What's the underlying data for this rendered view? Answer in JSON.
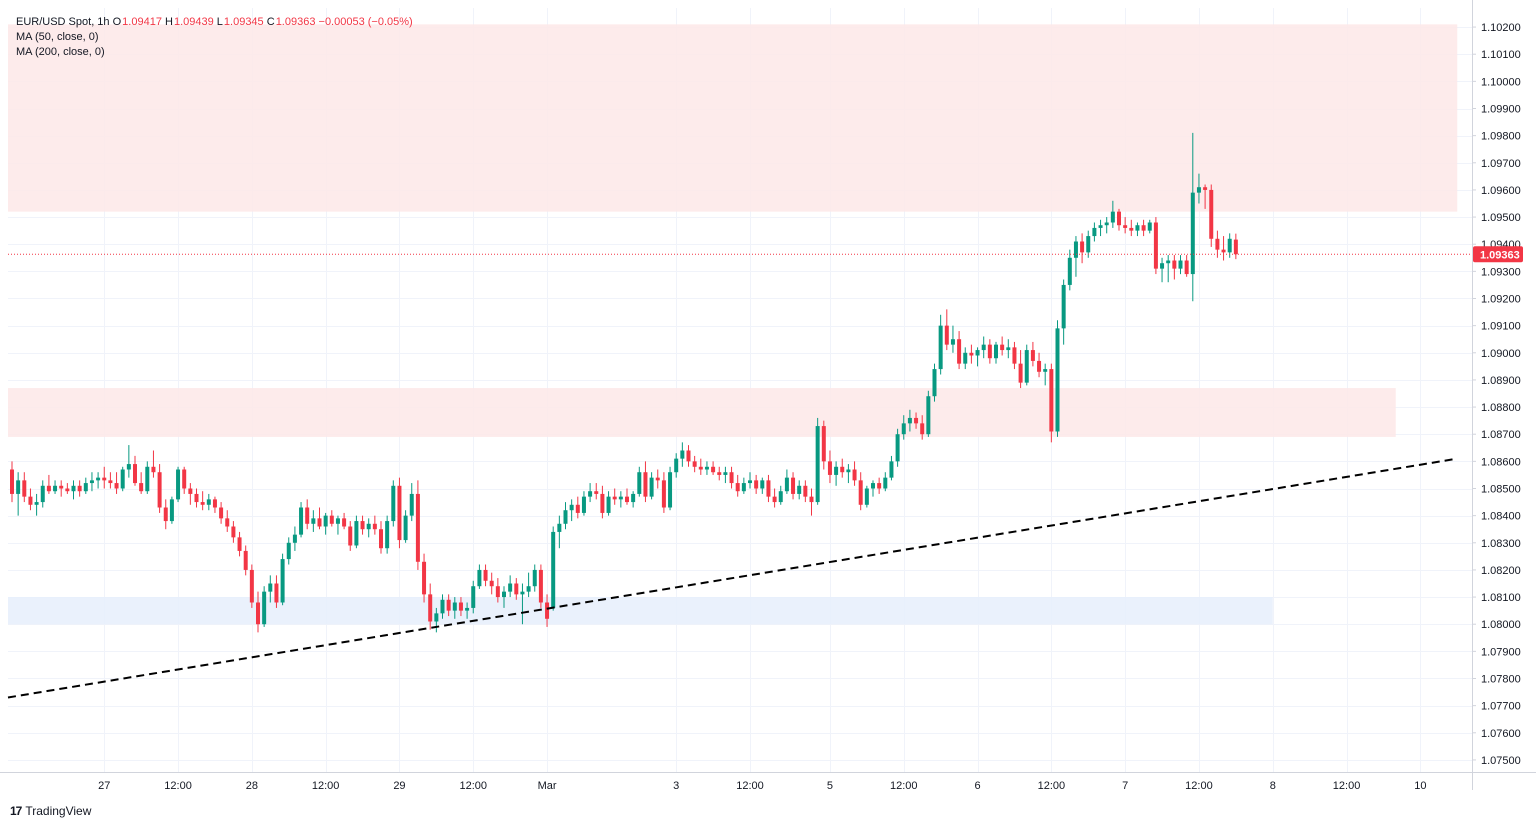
{
  "legend": {
    "symbol": "EUR/USD Spot, 1h",
    "o_label": "O",
    "o": "1.09417",
    "h_label": "H",
    "h": "1.09439",
    "l_label": "L",
    "l": "1.09345",
    "c_label": "C",
    "c": "1.09363",
    "change": "−0.00053 (−0.05%)",
    "ma1": "MA (50, close, 0)",
    "ma2": "MA (200, close, 0)"
  },
  "brand": {
    "logo": "17",
    "name": "TradingView"
  },
  "colors": {
    "up": "#089981",
    "down": "#f23645",
    "grid": "#f0f3fa",
    "resistance_zone": "#fde8e8",
    "support_zone": "#e6effb",
    "trendline": "#000000"
  },
  "chart_data": {
    "type": "candlestick",
    "title": "EUR/USD Spot, 1h",
    "last_price": "1.09363",
    "ylim": [
      1.0745,
      1.1025
    ],
    "y_ticks": [
      "1.10200",
      "1.10100",
      "1.10000",
      "1.09900",
      "1.09800",
      "1.09700",
      "1.09600",
      "1.09500",
      "1.09400",
      "1.09300",
      "1.09200",
      "1.09100",
      "1.09000",
      "1.08900",
      "1.08800",
      "1.08700",
      "1.08600",
      "1.08500",
      "1.08400",
      "1.08300",
      "1.08200",
      "1.08100",
      "1.08000",
      "1.07900",
      "1.07800",
      "1.07700",
      "1.07600",
      "1.07500"
    ],
    "x_ticks": [
      {
        "label": "27",
        "bar": 15
      },
      {
        "label": "12:00",
        "bar": 27
      },
      {
        "label": "28",
        "bar": 39
      },
      {
        "label": "12:00",
        "bar": 51
      },
      {
        "label": "29",
        "bar": 63
      },
      {
        "label": "12:00",
        "bar": 75
      },
      {
        "label": "Mar",
        "bar": 87
      },
      {
        "label": "3",
        "bar": 108
      },
      {
        "label": "12:00",
        "bar": 120
      },
      {
        "label": "5",
        "bar": 133
      },
      {
        "label": "12:00",
        "bar": 145
      },
      {
        "label": "6",
        "bar": 157
      },
      {
        "label": "12:00",
        "bar": 169
      },
      {
        "label": "7",
        "bar": 181
      },
      {
        "label": "12:00",
        "bar": 193
      },
      {
        "label": "8",
        "bar": 205
      },
      {
        "label": "12:00",
        "bar": 217
      },
      {
        "label": "10",
        "bar": 229
      }
    ],
    "zones": [
      {
        "name": "resistance",
        "from": 1.0952,
        "to": 1.1021,
        "bar_start": 0,
        "bar_end": 235
      },
      {
        "name": "resistance",
        "from": 1.0869,
        "to": 1.0887,
        "bar_start": 0,
        "bar_end": 225
      },
      {
        "name": "support",
        "from": 1.08,
        "to": 1.081,
        "bar_start": 0,
        "bar_end": 205
      }
    ],
    "trendline": {
      "start": {
        "bar": 0,
        "price": 1.0773
      },
      "end": {
        "bar": 235,
        "price": 1.0861
      }
    },
    "candles": [
      [
        1.0857,
        1.086,
        1.0845,
        1.0848
      ],
      [
        1.0848,
        1.0856,
        1.084,
        1.0853
      ],
      [
        1.0853,
        1.0856,
        1.0845,
        1.0847
      ],
      [
        1.0847,
        1.085,
        1.0842,
        1.0844
      ],
      [
        1.0844,
        1.0848,
        1.084,
        1.0845
      ],
      [
        1.0845,
        1.0853,
        1.0843,
        1.0851
      ],
      [
        1.0851,
        1.0855,
        1.0848,
        1.0849
      ],
      [
        1.0849,
        1.0853,
        1.0848,
        1.0851
      ],
      [
        1.0851,
        1.0853,
        1.0847,
        1.085
      ],
      [
        1.085,
        1.0852,
        1.0848,
        1.0849
      ],
      [
        1.0849,
        1.0853,
        1.0846,
        1.0851
      ],
      [
        1.0851,
        1.0853,
        1.0847,
        1.0849
      ],
      [
        1.0849,
        1.0854,
        1.0848,
        1.0852
      ],
      [
        1.0852,
        1.0856,
        1.0849,
        1.0853
      ],
      [
        1.0853,
        1.0856,
        1.085,
        1.0854
      ],
      [
        1.0854,
        1.0858,
        1.085,
        1.0853
      ],
      [
        1.0853,
        1.0856,
        1.085,
        1.0852
      ],
      [
        1.0852,
        1.0856,
        1.0848,
        1.085
      ],
      [
        1.085,
        1.0858,
        1.0849,
        1.0857
      ],
      [
        1.0857,
        1.0866,
        1.0854,
        1.0859
      ],
      [
        1.0859,
        1.0862,
        1.0851,
        1.0852
      ],
      [
        1.0852,
        1.0856,
        1.0848,
        1.0849
      ],
      [
        1.0849,
        1.086,
        1.0848,
        1.0858
      ],
      [
        1.0858,
        1.0864,
        1.0854,
        1.0856
      ],
      [
        1.0856,
        1.0859,
        1.0841,
        1.0843
      ],
      [
        1.0843,
        1.0846,
        1.0835,
        1.0838
      ],
      [
        1.0838,
        1.0847,
        1.0837,
        1.0846
      ],
      [
        1.0846,
        1.0858,
        1.0845,
        1.0857
      ],
      [
        1.0857,
        1.0858,
        1.0848,
        1.085
      ],
      [
        1.085,
        1.0852,
        1.0844,
        1.0848
      ],
      [
        1.0848,
        1.085,
        1.0843,
        1.0845
      ],
      [
        1.0845,
        1.0849,
        1.0842,
        1.0844
      ],
      [
        1.0844,
        1.0848,
        1.0842,
        1.0846
      ],
      [
        1.0846,
        1.0847,
        1.0841,
        1.0843
      ],
      [
        1.0843,
        1.0845,
        1.0837,
        1.0839
      ],
      [
        1.0839,
        1.0842,
        1.0834,
        1.0836
      ],
      [
        1.0836,
        1.0838,
        1.083,
        1.0832
      ],
      [
        1.0832,
        1.0834,
        1.0825,
        1.0827
      ],
      [
        1.0827,
        1.0829,
        1.0818,
        1.082
      ],
      [
        1.082,
        1.0822,
        1.0806,
        1.0808
      ],
      [
        1.0808,
        1.0812,
        1.0797,
        1.08
      ],
      [
        1.08,
        1.0814,
        1.0799,
        1.0812
      ],
      [
        1.0812,
        1.0818,
        1.0808,
        1.0815
      ],
      [
        1.0815,
        1.0818,
        1.0806,
        1.0808
      ],
      [
        1.0808,
        1.0826,
        1.0807,
        1.0824
      ],
      [
        1.0824,
        1.0832,
        1.0822,
        1.083
      ],
      [
        1.083,
        1.0836,
        1.0827,
        1.0833
      ],
      [
        1.0833,
        1.0845,
        1.0832,
        1.0843
      ],
      [
        1.0843,
        1.0846,
        1.0835,
        1.0837
      ],
      [
        1.0837,
        1.0842,
        1.0834,
        1.0839
      ],
      [
        1.0839,
        1.0843,
        1.0835,
        1.0836
      ],
      [
        1.0836,
        1.0841,
        1.0833,
        1.084
      ],
      [
        1.084,
        1.0842,
        1.0836,
        1.0837
      ],
      [
        1.0837,
        1.084,
        1.0833,
        1.0839
      ],
      [
        1.0839,
        1.0841,
        1.0835,
        1.0836
      ],
      [
        1.0836,
        1.0838,
        1.0827,
        1.0829
      ],
      [
        1.0829,
        1.084,
        1.0828,
        1.0838
      ],
      [
        1.0838,
        1.084,
        1.0833,
        1.0835
      ],
      [
        1.0835,
        1.0839,
        1.0832,
        1.0837
      ],
      [
        1.0837,
        1.084,
        1.0833,
        1.0835
      ],
      [
        1.0835,
        1.0838,
        1.0826,
        1.0828
      ],
      [
        1.0828,
        1.084,
        1.0826,
        1.0838
      ],
      [
        1.0838,
        1.0853,
        1.0836,
        1.0851
      ],
      [
        1.0851,
        1.0854,
        1.0828,
        1.0831
      ],
      [
        1.0831,
        1.0842,
        1.083,
        1.084
      ],
      [
        1.084,
        1.0852,
        1.0838,
        1.0848
      ],
      [
        1.0848,
        1.0853,
        1.082,
        1.0823
      ],
      [
        1.0823,
        1.0826,
        1.0808,
        1.0811
      ],
      [
        1.0811,
        1.0815,
        1.0798,
        1.0801
      ],
      [
        1.0801,
        1.0806,
        1.0797,
        1.0804
      ],
      [
        1.0804,
        1.0811,
        1.0802,
        1.0809
      ],
      [
        1.0809,
        1.0811,
        1.0803,
        1.0805
      ],
      [
        1.0805,
        1.081,
        1.0802,
        1.0808
      ],
      [
        1.0808,
        1.081,
        1.0803,
        1.0805
      ],
      [
        1.0805,
        1.0808,
        1.0802,
        1.0806
      ],
      [
        1.0806,
        1.0816,
        1.0804,
        1.0814
      ],
      [
        1.0814,
        1.0822,
        1.0813,
        1.082
      ],
      [
        1.082,
        1.0822,
        1.0814,
        1.0816
      ],
      [
        1.0816,
        1.0819,
        1.0811,
        1.0814
      ],
      [
        1.0814,
        1.0817,
        1.0808,
        1.081
      ],
      [
        1.081,
        1.0814,
        1.0806,
        1.0812
      ],
      [
        1.0812,
        1.0818,
        1.081,
        1.0815
      ],
      [
        1.0815,
        1.0817,
        1.0809,
        1.0811
      ],
      [
        1.0811,
        1.0815,
        1.08,
        1.0812
      ],
      [
        1.0812,
        1.0819,
        1.081,
        1.0814
      ],
      [
        1.0814,
        1.0822,
        1.0812,
        1.082
      ],
      [
        1.082,
        1.0822,
        1.0806,
        1.0808
      ],
      [
        1.0808,
        1.0811,
        1.0799,
        1.0802
      ],
      [
        1.0806,
        1.0836,
        1.0805,
        1.0834
      ],
      [
        1.0834,
        1.084,
        1.0828,
        1.0837
      ],
      [
        1.0837,
        1.0845,
        1.0835,
        1.0842
      ],
      [
        1.0842,
        1.0846,
        1.0838,
        1.0844
      ],
      [
        1.0844,
        1.0847,
        1.0839,
        1.0841
      ],
      [
        1.0841,
        1.0849,
        1.084,
        1.0847
      ],
      [
        1.0847,
        1.0852,
        1.0845,
        1.0849
      ],
      [
        1.0849,
        1.0852,
        1.0846,
        1.0848
      ],
      [
        1.0848,
        1.0851,
        1.0839,
        1.0841
      ],
      [
        1.0841,
        1.0849,
        1.084,
        1.0847
      ],
      [
        1.0847,
        1.085,
        1.0844,
        1.0846
      ],
      [
        1.0846,
        1.0849,
        1.0843,
        1.0847
      ],
      [
        1.0847,
        1.085,
        1.0844,
        1.0845
      ],
      [
        1.0845,
        1.0849,
        1.0843,
        1.0848
      ],
      [
        1.0848,
        1.0858,
        1.0847,
        1.0856
      ],
      [
        1.0856,
        1.086,
        1.0845,
        1.0847
      ],
      [
        1.0847,
        1.0856,
        1.0846,
        1.0854
      ],
      [
        1.0854,
        1.0857,
        1.085,
        1.0853
      ],
      [
        1.0853,
        1.0856,
        1.0841,
        1.0843
      ],
      [
        1.0843,
        1.0858,
        1.0842,
        1.0856
      ],
      [
        1.0856,
        1.0863,
        1.0854,
        1.0861
      ],
      [
        1.0861,
        1.0867,
        1.0858,
        1.0864
      ],
      [
        1.0864,
        1.0866,
        1.0858,
        1.086
      ],
      [
        1.086,
        1.0862,
        1.0856,
        1.0858
      ],
      [
        1.0858,
        1.0861,
        1.0855,
        1.0857
      ],
      [
        1.0857,
        1.086,
        1.0855,
        1.0858
      ],
      [
        1.0858,
        1.086,
        1.0855,
        1.0856
      ],
      [
        1.0856,
        1.0858,
        1.0853,
        1.0855
      ],
      [
        1.0855,
        1.0858,
        1.0852,
        1.0856
      ],
      [
        1.0856,
        1.0858,
        1.085,
        1.0852
      ],
      [
        1.0852,
        1.0855,
        1.0847,
        1.0849
      ],
      [
        1.0849,
        1.0854,
        1.0848,
        1.0852
      ],
      [
        1.0852,
        1.0856,
        1.085,
        1.0853
      ],
      [
        1.0853,
        1.0855,
        1.0848,
        1.085
      ],
      [
        1.085,
        1.0854,
        1.0848,
        1.0853
      ],
      [
        1.0853,
        1.0855,
        1.0845,
        1.0847
      ],
      [
        1.0847,
        1.085,
        1.0843,
        1.0845
      ],
      [
        1.0845,
        1.0851,
        1.0844,
        1.0849
      ],
      [
        1.0849,
        1.0857,
        1.0848,
        1.0854
      ],
      [
        1.0854,
        1.0856,
        1.0846,
        1.0848
      ],
      [
        1.0848,
        1.0853,
        1.0846,
        1.0851
      ],
      [
        1.0851,
        1.0853,
        1.0845,
        1.0847
      ],
      [
        1.0847,
        1.085,
        1.084,
        1.0845
      ],
      [
        1.0845,
        1.0876,
        1.0844,
        1.0873
      ],
      [
        1.0873,
        1.0875,
        1.0857,
        1.086
      ],
      [
        1.086,
        1.0864,
        1.0852,
        1.0855
      ],
      [
        1.0855,
        1.086,
        1.0851,
        1.0858
      ],
      [
        1.0858,
        1.0861,
        1.0854,
        1.0856
      ],
      [
        1.0856,
        1.0859,
        1.0852,
        1.0857
      ],
      [
        1.0857,
        1.086,
        1.0851,
        1.0853
      ],
      [
        1.0853,
        1.0856,
        1.0842,
        1.0844
      ],
      [
        1.0844,
        1.0851,
        1.0843,
        1.085
      ],
      [
        1.085,
        1.0853,
        1.0847,
        1.0852
      ],
      [
        1.0852,
        1.0854,
        1.0848,
        1.085
      ],
      [
        1.085,
        1.0856,
        1.0849,
        1.0854
      ],
      [
        1.0854,
        1.0862,
        1.0853,
        1.086
      ],
      [
        1.086,
        1.0872,
        1.0858,
        1.087
      ],
      [
        1.087,
        1.0877,
        1.0868,
        1.0874
      ],
      [
        1.0874,
        1.0879,
        1.0871,
        1.0876
      ],
      [
        1.0876,
        1.0878,
        1.0872,
        1.0874
      ],
      [
        1.0874,
        1.0877,
        1.0868,
        1.087
      ],
      [
        1.087,
        1.0886,
        1.0869,
        1.0884
      ],
      [
        1.0884,
        1.0896,
        1.0882,
        1.0894
      ],
      [
        1.0894,
        1.0914,
        1.0892,
        1.091
      ],
      [
        1.091,
        1.0916,
        1.0901,
        1.0903
      ],
      [
        1.0903,
        1.091,
        1.09,
        1.0905
      ],
      [
        1.0905,
        1.0908,
        1.0894,
        1.0896
      ],
      [
        1.0896,
        1.0902,
        1.0894,
        1.09
      ],
      [
        1.09,
        1.0903,
        1.0896,
        1.0899
      ],
      [
        1.0899,
        1.0902,
        1.0895,
        1.0901
      ],
      [
        1.0901,
        1.0906,
        1.0898,
        1.0903
      ],
      [
        1.0903,
        1.0905,
        1.0896,
        1.0898
      ],
      [
        1.0898,
        1.0904,
        1.0896,
        1.0903
      ],
      [
        1.0903,
        1.0906,
        1.0899,
        1.0901
      ],
      [
        1.0901,
        1.0905,
        1.0898,
        1.0902
      ],
      [
        1.0902,
        1.0904,
        1.0894,
        1.0896
      ],
      [
        1.0896,
        1.0901,
        1.0887,
        1.0889
      ],
      [
        1.0889,
        1.0903,
        1.0888,
        1.0901
      ],
      [
        1.0901,
        1.0904,
        1.0895,
        1.0897
      ],
      [
        1.0897,
        1.09,
        1.0891,
        1.0893
      ],
      [
        1.0893,
        1.0896,
        1.0888,
        1.0894
      ],
      [
        1.0894,
        1.0896,
        1.0867,
        1.0871
      ],
      [
        1.0871,
        1.0912,
        1.0869,
        1.0909
      ],
      [
        1.0909,
        1.0927,
        1.0903,
        1.0925
      ],
      [
        1.0925,
        1.0938,
        1.0923,
        1.0935
      ],
      [
        1.0935,
        1.0943,
        1.0928,
        1.0941
      ],
      [
        1.0941,
        1.0944,
        1.0933,
        1.0937
      ],
      [
        1.0937,
        1.0945,
        1.0935,
        1.0943
      ],
      [
        1.0943,
        1.0948,
        1.0941,
        1.0946
      ],
      [
        1.0946,
        1.0949,
        1.0943,
        1.0947
      ],
      [
        1.0947,
        1.095,
        1.0944,
        1.0948
      ],
      [
        1.0948,
        1.0956,
        1.0946,
        1.0952
      ],
      [
        1.0952,
        1.0953,
        1.0945,
        1.0947
      ],
      [
        1.0947,
        1.095,
        1.0944,
        1.0946
      ],
      [
        1.0946,
        1.0949,
        1.0943,
        1.0945
      ],
      [
        1.0945,
        1.0948,
        1.0943,
        1.0947
      ],
      [
        1.0947,
        1.0949,
        1.0943,
        1.0945
      ],
      [
        1.0945,
        1.0949,
        1.0944,
        1.0948
      ],
      [
        1.0948,
        1.095,
        1.0929,
        1.0931
      ],
      [
        1.0931,
        1.0935,
        1.0926,
        1.0933
      ],
      [
        1.0933,
        1.0936,
        1.0926,
        1.0934
      ],
      [
        1.0934,
        1.0936,
        1.0927,
        1.0931
      ],
      [
        1.0931,
        1.0936,
        1.0929,
        1.0934
      ],
      [
        1.0934,
        1.0936,
        1.0928,
        1.0929
      ],
      [
        1.0929,
        1.0981,
        1.0919,
        1.0959
      ],
      [
        1.0959,
        1.0966,
        1.0955,
        1.0961
      ],
      [
        1.0961,
        1.0962,
        1.0953,
        1.096
      ],
      [
        1.096,
        1.0962,
        1.0939,
        1.0942
      ],
      [
        1.0942,
        1.0945,
        1.0935,
        1.0938
      ],
      [
        1.0938,
        1.0943,
        1.0934,
        1.0937
      ],
      [
        1.0937,
        1.0944,
        1.0935,
        1.0942
      ],
      [
        1.09417,
        1.09439,
        1.09345,
        1.09363
      ]
    ]
  }
}
